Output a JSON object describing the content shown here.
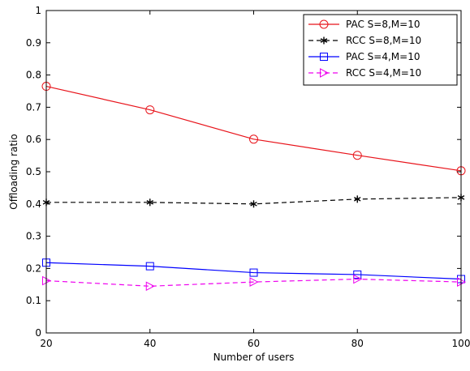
{
  "chart_data": {
    "type": "line",
    "title": "",
    "xlabel": "Number of users",
    "ylabel": "Offloading ratio",
    "x": [
      20,
      40,
      60,
      80,
      100
    ],
    "xlim": [
      20,
      100
    ],
    "ylim": [
      0,
      1
    ],
    "xticks": [
      "20",
      "40",
      "60",
      "80",
      "100"
    ],
    "yticks": [
      "0",
      "0.1",
      "0.2",
      "0.3",
      "0.4",
      "0.5",
      "0.6",
      "0.7",
      "0.8",
      "0.9",
      "1"
    ],
    "grid": false,
    "legend_position": "top-right",
    "series": [
      {
        "name": "PAC    S=8,M=10",
        "values": [
          0.765,
          0.692,
          0.601,
          0.551,
          0.503
        ],
        "color": "#e8131a",
        "line_style": "solid",
        "marker": "circle"
      },
      {
        "name": "RCC    S=8,M=10",
        "values": [
          0.405,
          0.405,
          0.4,
          0.415,
          0.42
        ],
        "color": "#000000",
        "line_style": "dashed",
        "marker": "asterisk"
      },
      {
        "name": "PAC    S=4,M=10",
        "values": [
          0.218,
          0.207,
          0.187,
          0.181,
          0.167
        ],
        "color": "#0000ff",
        "line_style": "solid",
        "marker": "square"
      },
      {
        "name": "RCC    S=4,M=10",
        "values": [
          0.162,
          0.145,
          0.158,
          0.167,
          0.158
        ],
        "color": "#ee00ee",
        "line_style": "dashed",
        "marker": "triangle-right"
      }
    ]
  }
}
